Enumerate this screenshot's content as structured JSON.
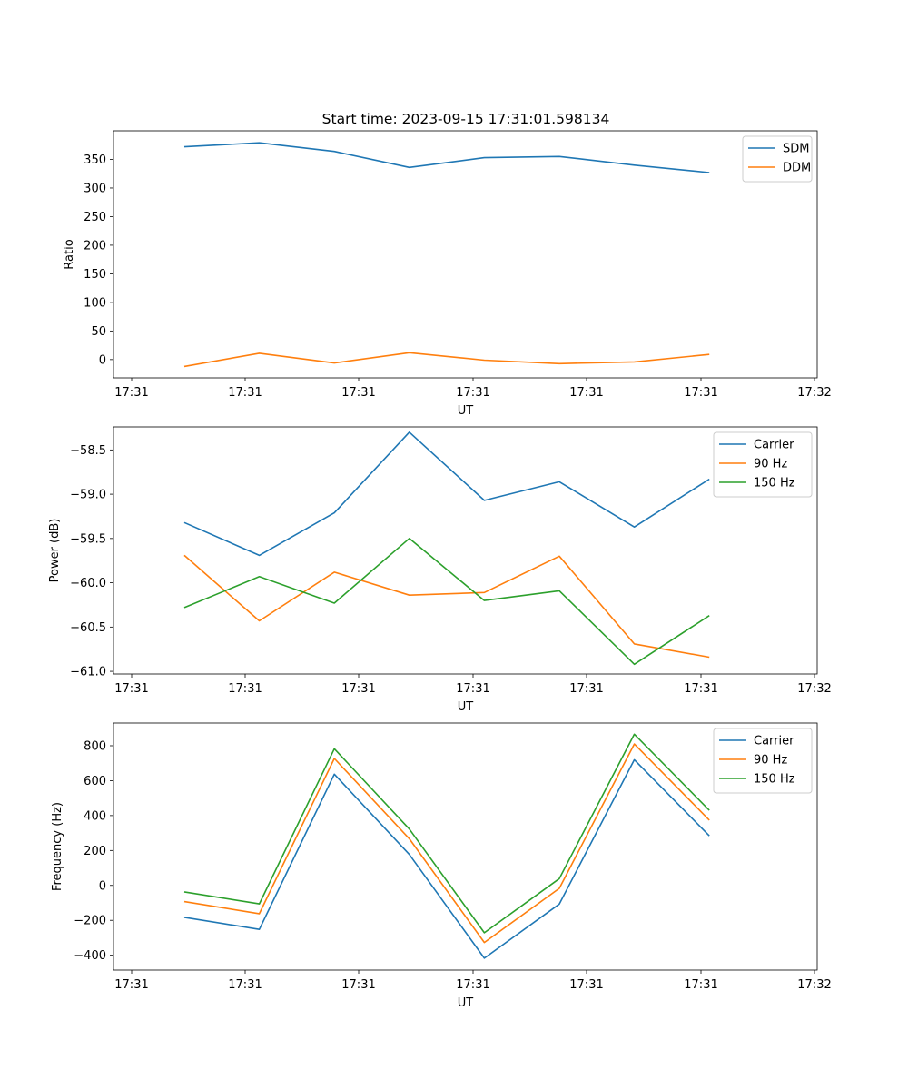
{
  "figure_title": "Start time: 2023-09-15 17:31:01.598134",
  "chart_data": [
    {
      "type": "line",
      "title": "Start time: 2023-09-15 17:31:01.598134",
      "xlabel": "UT",
      "ylabel": "Ratio",
      "x_tick_labels": [
        "17:31",
        "17:31",
        "17:31",
        "17:31",
        "17:31",
        "17:31",
        "17:32"
      ],
      "y_ticks": [
        0,
        50,
        100,
        150,
        200,
        250,
        300,
        350
      ],
      "ylim": [
        -32,
        400
      ],
      "legend_position": "top-right",
      "series": [
        {
          "name": "SDM",
          "color": "#1f77b4",
          "values": [
            372,
            379,
            364,
            336,
            353,
            355,
            340,
            327
          ]
        },
        {
          "name": "DDM",
          "color": "#ff7f0e",
          "values": [
            -12,
            11,
            -6,
            12,
            -1,
            -7,
            -4,
            9
          ]
        }
      ]
    },
    {
      "type": "line",
      "title": "",
      "xlabel": "UT",
      "ylabel": "Power (dB)",
      "x_tick_labels": [
        "17:31",
        "17:31",
        "17:31",
        "17:31",
        "17:31",
        "17:31",
        "17:32"
      ],
      "y_ticks": [
        -61.0,
        -60.5,
        -60.0,
        -59.5,
        -59.0,
        -58.5
      ],
      "y_tick_labels": [
        "−61.0",
        "−60.5",
        "−60.0",
        "−59.5",
        "−59.0",
        "−58.5"
      ],
      "ylim": [
        -61.03,
        -58.24
      ],
      "legend_position": "top-right",
      "series": [
        {
          "name": "Carrier",
          "color": "#1f77b4",
          "values": [
            -59.32,
            -59.69,
            -59.21,
            -58.3,
            -59.07,
            -58.86,
            -59.37,
            -58.83
          ]
        },
        {
          "name": "90 Hz",
          "color": "#ff7f0e",
          "values": [
            -59.69,
            -60.43,
            -59.88,
            -60.14,
            -60.11,
            -59.7,
            -60.69,
            -60.84
          ]
        },
        {
          "name": "150 Hz",
          "color": "#2ca02c",
          "values": [
            -60.28,
            -59.93,
            -60.23,
            -59.5,
            -60.2,
            -60.09,
            -60.92,
            -60.37
          ]
        }
      ]
    },
    {
      "type": "line",
      "title": "",
      "xlabel": "UT",
      "ylabel": "Frequency (Hz)",
      "x_tick_labels": [
        "17:31",
        "17:31",
        "17:31",
        "17:31",
        "17:31",
        "17:31",
        "17:32"
      ],
      "y_ticks": [
        -400,
        -200,
        0,
        200,
        400,
        600,
        800
      ],
      "y_tick_labels": [
        "−400",
        "−200",
        "0",
        "200",
        "400",
        "600",
        "800"
      ],
      "ylim": [
        -485,
        930
      ],
      "legend_position": "top-right",
      "series": [
        {
          "name": "Carrier",
          "color": "#1f77b4",
          "values": [
            -183,
            -252,
            637,
            177,
            -417,
            -107,
            720,
            284
          ]
        },
        {
          "name": "90 Hz",
          "color": "#ff7f0e",
          "values": [
            -93,
            -162,
            727,
            267,
            -327,
            -17,
            810,
            374
          ]
        },
        {
          "name": "150 Hz",
          "color": "#2ca02c",
          "values": [
            -37,
            -106,
            783,
            323,
            -271,
            39,
            866,
            430
          ]
        }
      ]
    }
  ]
}
